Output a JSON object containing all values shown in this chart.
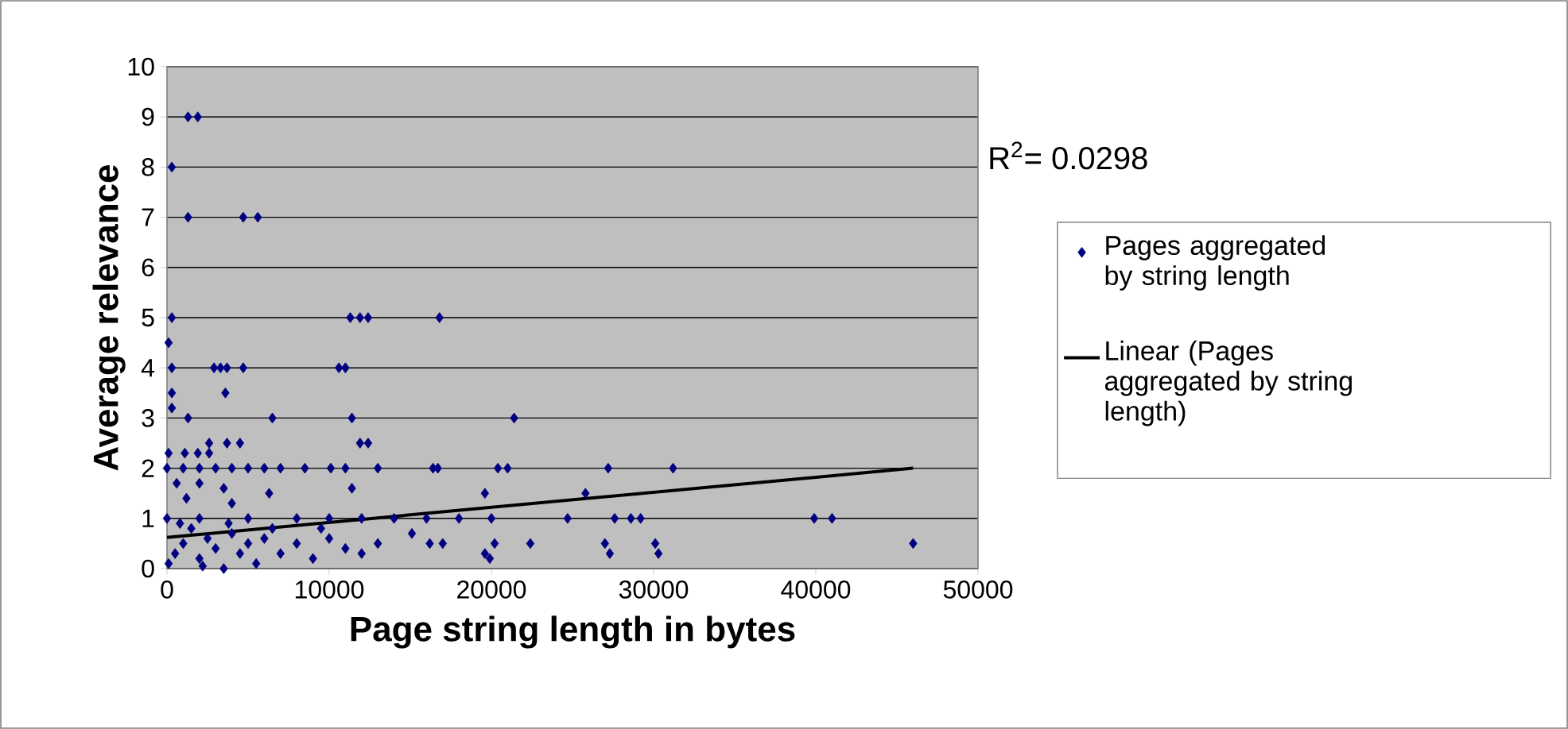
{
  "chart_data": {
    "type": "scatter",
    "xlabel": "Page string length in bytes",
    "ylabel": "Average relevance",
    "xlim": [
      0,
      50000
    ],
    "xticks": [
      0,
      10000,
      20000,
      30000,
      40000,
      50000
    ],
    "ylim": [
      0,
      10
    ],
    "yticks": [
      0,
      1,
      2,
      3,
      4,
      5,
      6,
      7,
      8,
      9,
      10
    ],
    "grid": "y",
    "legend": "right",
    "annotations": [
      "R$^{2}$= 0.0298"
    ],
    "series": [
      {
        "name": "Pages aggregated by string length",
        "color": "#000080",
        "marker": "diamond",
        "x": [
          1300,
          1900,
          300,
          1300,
          4700,
          5600,
          300,
          11300,
          11900,
          12400,
          16800,
          100,
          300,
          2900,
          3300,
          3700,
          4700,
          10600,
          11000,
          300,
          3600,
          300,
          1300,
          6500,
          11400,
          21400,
          2600,
          3700,
          4500,
          11900,
          12400,
          100,
          1100,
          1900,
          2600,
          0,
          1000,
          2000,
          3000,
          4000,
          5000,
          6000,
          7000,
          8500,
          10100,
          11000,
          13000,
          16400,
          16700,
          20400,
          21000,
          27200,
          31200,
          11400,
          6300,
          19600,
          25800,
          600,
          2000,
          3500,
          1200,
          4000,
          0,
          2000,
          5000,
          8000,
          10000,
          12000,
          14000,
          16000,
          18000,
          20000,
          24700,
          27600,
          28600,
          29200,
          39900,
          41000,
          22400,
          19600,
          19900,
          20200,
          16200,
          17000,
          15100,
          27000,
          27300,
          30100,
          30300,
          46000,
          100,
          500,
          1000,
          1500,
          2000,
          2500,
          3000,
          3500,
          4000,
          4500,
          5000,
          5500,
          6000,
          7000,
          8000,
          9000,
          10000,
          11000,
          12000,
          13000,
          800,
          2200,
          3800,
          6500,
          9500
        ],
        "values": [
          9,
          9,
          8,
          7,
          7,
          7,
          5,
          5,
          5,
          5,
          5,
          4.5,
          4,
          4,
          4,
          4,
          4,
          4,
          4,
          3.5,
          3.5,
          3.2,
          3,
          3,
          3,
          3,
          2.5,
          2.5,
          2.5,
          2.5,
          2.5,
          2.3,
          2.3,
          2.3,
          2.3,
          2,
          2,
          2,
          2,
          2,
          2,
          2,
          2,
          2,
          2,
          2,
          2,
          2,
          2,
          2,
          2,
          2,
          2,
          1.6,
          1.5,
          1.5,
          1.5,
          1.7,
          1.7,
          1.6,
          1.4,
          1.3,
          1,
          1,
          1,
          1,
          1,
          1,
          1,
          1,
          1,
          1,
          1,
          1,
          1,
          1,
          1,
          1,
          0.5,
          0.3,
          0.2,
          0.5,
          0.5,
          0.5,
          0.7,
          0.5,
          0.3,
          0.5,
          0.3,
          0.5,
          0.1,
          0.3,
          0.5,
          0.8,
          0.2,
          0.6,
          0.4,
          0,
          0.7,
          0.3,
          0.5,
          0.1,
          0.6,
          0.3,
          0.5,
          0.2,
          0.6,
          0.4,
          0.3,
          0.5,
          0.9,
          0.05,
          0.9,
          0.8,
          0.8
        ]
      },
      {
        "name": "Linear (Pages aggregated by string length)",
        "type": "line",
        "color": "#000000",
        "x": [
          0,
          46000
        ],
        "values": [
          0.62,
          2.0
        ]
      }
    ]
  }
}
